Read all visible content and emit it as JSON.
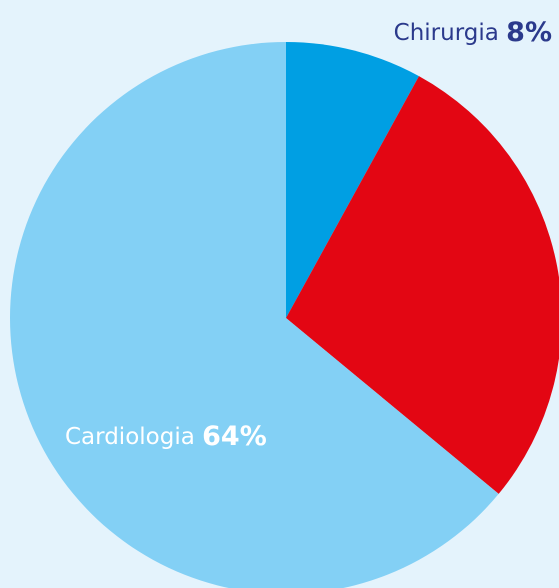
{
  "chart_data": {
    "type": "pie",
    "categories": [
      "Chirurgia",
      null,
      "Cardiologia"
    ],
    "values": [
      8,
      28,
      64
    ],
    "value_labels": [
      "8%",
      null,
      "64%"
    ],
    "colors": [
      "#009fe3",
      "#e30613",
      "#83d0f5"
    ],
    "label_colors": [
      "#2b3a8c",
      null,
      "#ffffff"
    ],
    "start_angle": 0,
    "direction": "clockwise"
  }
}
